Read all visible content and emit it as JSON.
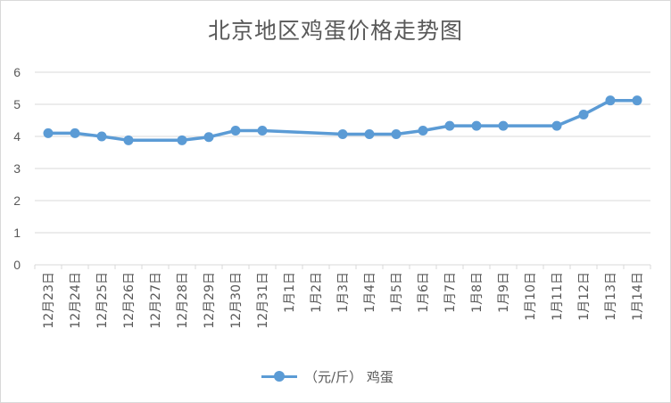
{
  "chart_data": {
    "type": "line",
    "title": "北京地区鸡蛋价格走势图",
    "categories": [
      "12月23日",
      "12月24日",
      "12月25日",
      "12月26日",
      "12月27日",
      "12月28日",
      "12月29日",
      "12月30日",
      "12月31日",
      "1月1日",
      "1月2日",
      "1月3日",
      "1月4日",
      "1月5日",
      "1月6日",
      "1月7日",
      "1月8日",
      "1月9日",
      "1月10日",
      "1月11日",
      "1月12日",
      "1月13日",
      "1月14日"
    ],
    "series": [
      {
        "name": "（元/斤） 鸡蛋",
        "color": "#5b9bd5",
        "values": [
          4.1,
          4.1,
          4.0,
          3.88,
          null,
          3.88,
          3.98,
          4.18,
          4.18,
          null,
          null,
          4.07,
          4.07,
          4.07,
          4.18,
          4.33,
          4.33,
          4.33,
          null,
          4.33,
          4.68,
          5.12,
          5.12
        ]
      }
    ],
    "ylim": [
      0,
      6
    ],
    "yticks": [
      "0",
      "1",
      "2",
      "3",
      "4",
      "5",
      "6"
    ],
    "grid": true,
    "legend_position": "bottom"
  }
}
